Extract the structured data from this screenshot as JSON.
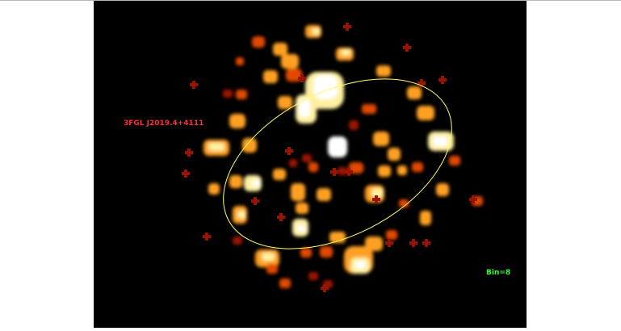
{
  "image": {
    "source_label": "3FGL J2019.4+4111",
    "bin_label": "Bin=8",
    "colors": {
      "background": "#000000",
      "source_label": "#ff3030",
      "bin_label": "#33ff33",
      "region_ellipse": "#ffff66",
      "colormap": [
        "#3a0000",
        "#9a1200",
        "#e24a00",
        "#ffa020",
        "#fff0a0",
        "#ffffff"
      ]
    }
  }
}
